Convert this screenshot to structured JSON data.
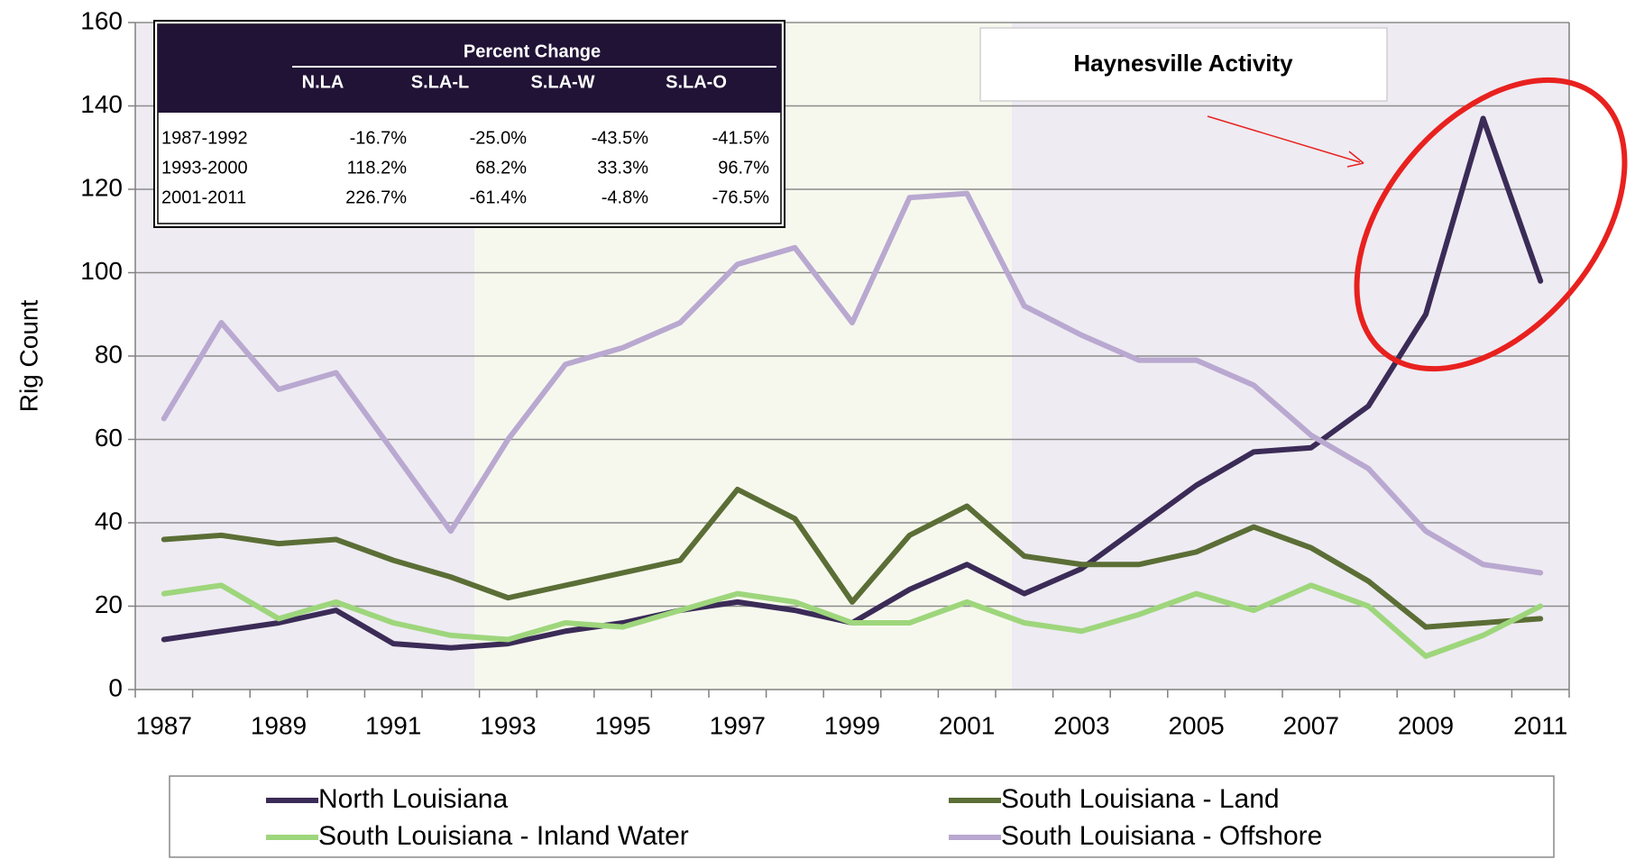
{
  "chart_data": {
    "type": "line",
    "y_label": "Rig Count",
    "categories": [
      "1987",
      null,
      "1989",
      null,
      "1991",
      null,
      "1993",
      null,
      "1995",
      null,
      "1997",
      null,
      "1999",
      null,
      "2001",
      null,
      "2003",
      null,
      "2005",
      null,
      "2007",
      null,
      "2009",
      null,
      "2011"
    ],
    "series": [
      {
        "name": "North Louisiana",
        "color": "#3b2b57",
        "values": [
          12,
          14,
          16,
          19,
          11,
          10,
          11,
          14,
          16,
          19,
          21,
          19,
          16,
          24,
          30,
          23,
          29,
          39,
          49,
          57,
          58,
          68,
          90,
          137,
          98
        ]
      },
      {
        "name": "South Louisiana - Land",
        "color": "#5b6e36",
        "values": [
          36,
          37,
          35,
          36,
          31,
          27,
          22,
          25,
          28,
          31,
          48,
          41,
          21,
          37,
          44,
          32,
          30,
          30,
          33,
          39,
          34,
          26,
          15,
          16,
          17
        ]
      },
      {
        "name": "South Louisiana - Inland Water",
        "color": "#9ed67c",
        "values": [
          23,
          25,
          17,
          21,
          16,
          13,
          12,
          16,
          15,
          19,
          23,
          21,
          16,
          16,
          21,
          16,
          14,
          18,
          23,
          19,
          25,
          20,
          8,
          13,
          20
        ]
      },
      {
        "name": "South Louisiana - Offshore",
        "color": "#b9a8d0",
        "values": [
          65,
          88,
          72,
          76,
          57,
          38,
          60,
          78,
          82,
          88,
          102,
          106,
          88,
          118,
          119,
          92,
          85,
          79,
          79,
          73,
          61,
          53,
          38,
          30,
          28
        ]
      }
    ],
    "ylim": [
      0,
      160
    ],
    "yticks": [
      0,
      20,
      40,
      60,
      80,
      100,
      120,
      140,
      160
    ],
    "grid": true,
    "legend": "bottom",
    "annotation": "Haynesville Activity",
    "inset_table": {
      "title": "Percent Change",
      "columns": [
        "N.LA",
        "S.LA-L",
        "S.LA-W",
        "S.LA-O"
      ],
      "rows": [
        [
          "1987-1992",
          "-16.7%",
          "-25.0%",
          "-43.5%",
          "-41.5%"
        ],
        [
          "1993-2000",
          "118.2%",
          "68.2%",
          "33.3%",
          "96.7%"
        ],
        [
          "2001-2011",
          "226.7%",
          "-61.4%",
          "-4.8%",
          "-76.5%"
        ]
      ]
    }
  }
}
